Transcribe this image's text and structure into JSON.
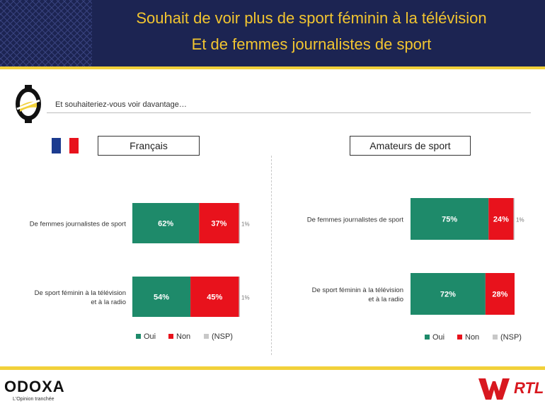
{
  "header": {
    "title_line1": "Souhait de voir plus de sport féminin à la télévision",
    "title_line2": "Et de femmes journalistes de sport"
  },
  "question": "Et souhaiteriez-vous voir davantage…",
  "colors": {
    "oui": "#1e8a6a",
    "non": "#e8121c",
    "nsp": "#c8c8c8",
    "header_bg": "#1c2452",
    "title": "#f2c530",
    "accent": "#f2d13a"
  },
  "chart_data": [
    {
      "type": "bar",
      "orientation": "horizontal",
      "stacked": true,
      "title": "Français",
      "categories": [
        "De femmes journalistes de sport",
        "De sport féminin à la télévision et à la radio"
      ],
      "series": [
        {
          "name": "Oui",
          "values": [
            62,
            54
          ]
        },
        {
          "name": "Non",
          "values": [
            37,
            45
          ]
        },
        {
          "name": "(NSP)",
          "values": [
            1,
            1
          ]
        }
      ],
      "value_labels": [
        [
          "62%",
          "37%",
          "1%"
        ],
        [
          "54%",
          "45%",
          "1%"
        ]
      ],
      "legend": "bottom"
    },
    {
      "type": "bar",
      "orientation": "horizontal",
      "stacked": true,
      "title": "Amateurs de sport",
      "categories": [
        "De femmes journalistes de sport",
        "De sport féminin à la télévision et à la radio"
      ],
      "series": [
        {
          "name": "Oui",
          "values": [
            75,
            72
          ]
        },
        {
          "name": "Non",
          "values": [
            24,
            28
          ]
        },
        {
          "name": "(NSP)",
          "values": [
            1,
            0
          ]
        }
      ],
      "value_labels": [
        [
          "75%",
          "24%",
          "1%"
        ],
        [
          "72%",
          "28%",
          ""
        ]
      ],
      "legend": "bottom"
    }
  ],
  "logos": {
    "odoxa": "ODOXA",
    "odoxa_tagline": "L'Opinion tranchée",
    "winamax": "WINAMAX",
    "rtl": "RTL"
  }
}
